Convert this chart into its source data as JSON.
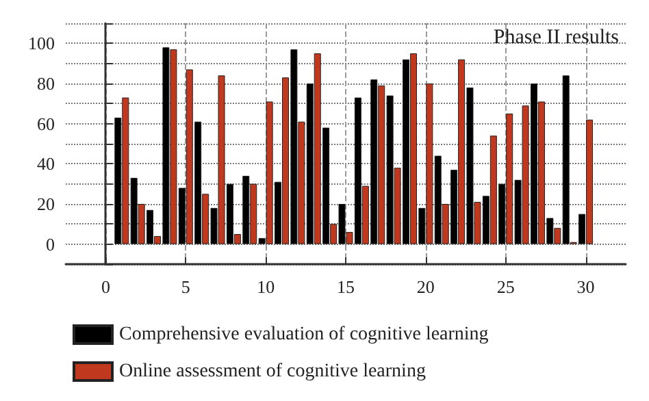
{
  "chart_data": {
    "type": "bar",
    "x": [
      1,
      2,
      3,
      4,
      5,
      6,
      7,
      8,
      9,
      10,
      11,
      12,
      13,
      14,
      15,
      16,
      17,
      18,
      19,
      20,
      21,
      22,
      23,
      24,
      25,
      26,
      27,
      28,
      29,
      30
    ],
    "series": [
      {
        "name": "Comprehensive evaluation of cognitive learning",
        "color": "#000000",
        "values": [
          63,
          33,
          17,
          98,
          28,
          61,
          18,
          30,
          34,
          3,
          31,
          97,
          80,
          58,
          20,
          73,
          82,
          74,
          92,
          18,
          44,
          37,
          78,
          24,
          30,
          32,
          80,
          13,
          84,
          15
        ]
      },
      {
        "name": "Online assessment of cognitive learning",
        "color": "#c0391f",
        "values": [
          73,
          20,
          4,
          97,
          87,
          25,
          84,
          5,
          30,
          71,
          83,
          61,
          95,
          10,
          6,
          29,
          79,
          38,
          95,
          80,
          20,
          92,
          21,
          54,
          65,
          69,
          71,
          8,
          1,
          62
        ]
      }
    ],
    "xlim": [
      -2.5,
      32.5
    ],
    "xticks": [
      0,
      5,
      10,
      15,
      20,
      25,
      30
    ],
    "ylim": [
      -10,
      110
    ],
    "yticks": [
      {
        "value": -10,
        "label": null
      },
      0,
      {
        "value": 10,
        "label": null
      },
      20,
      {
        "value": 30,
        "label": null
      },
      40,
      {
        "value": 50,
        "label": null
      },
      60,
      {
        "value": 70,
        "label": null
      },
      80,
      {
        "value": 90,
        "label": null
      },
      100,
      {
        "value": 110,
        "label": null
      }
    ],
    "annotations": [
      "Phase II results"
    ],
    "grid": true,
    "legend": "bottom"
  }
}
